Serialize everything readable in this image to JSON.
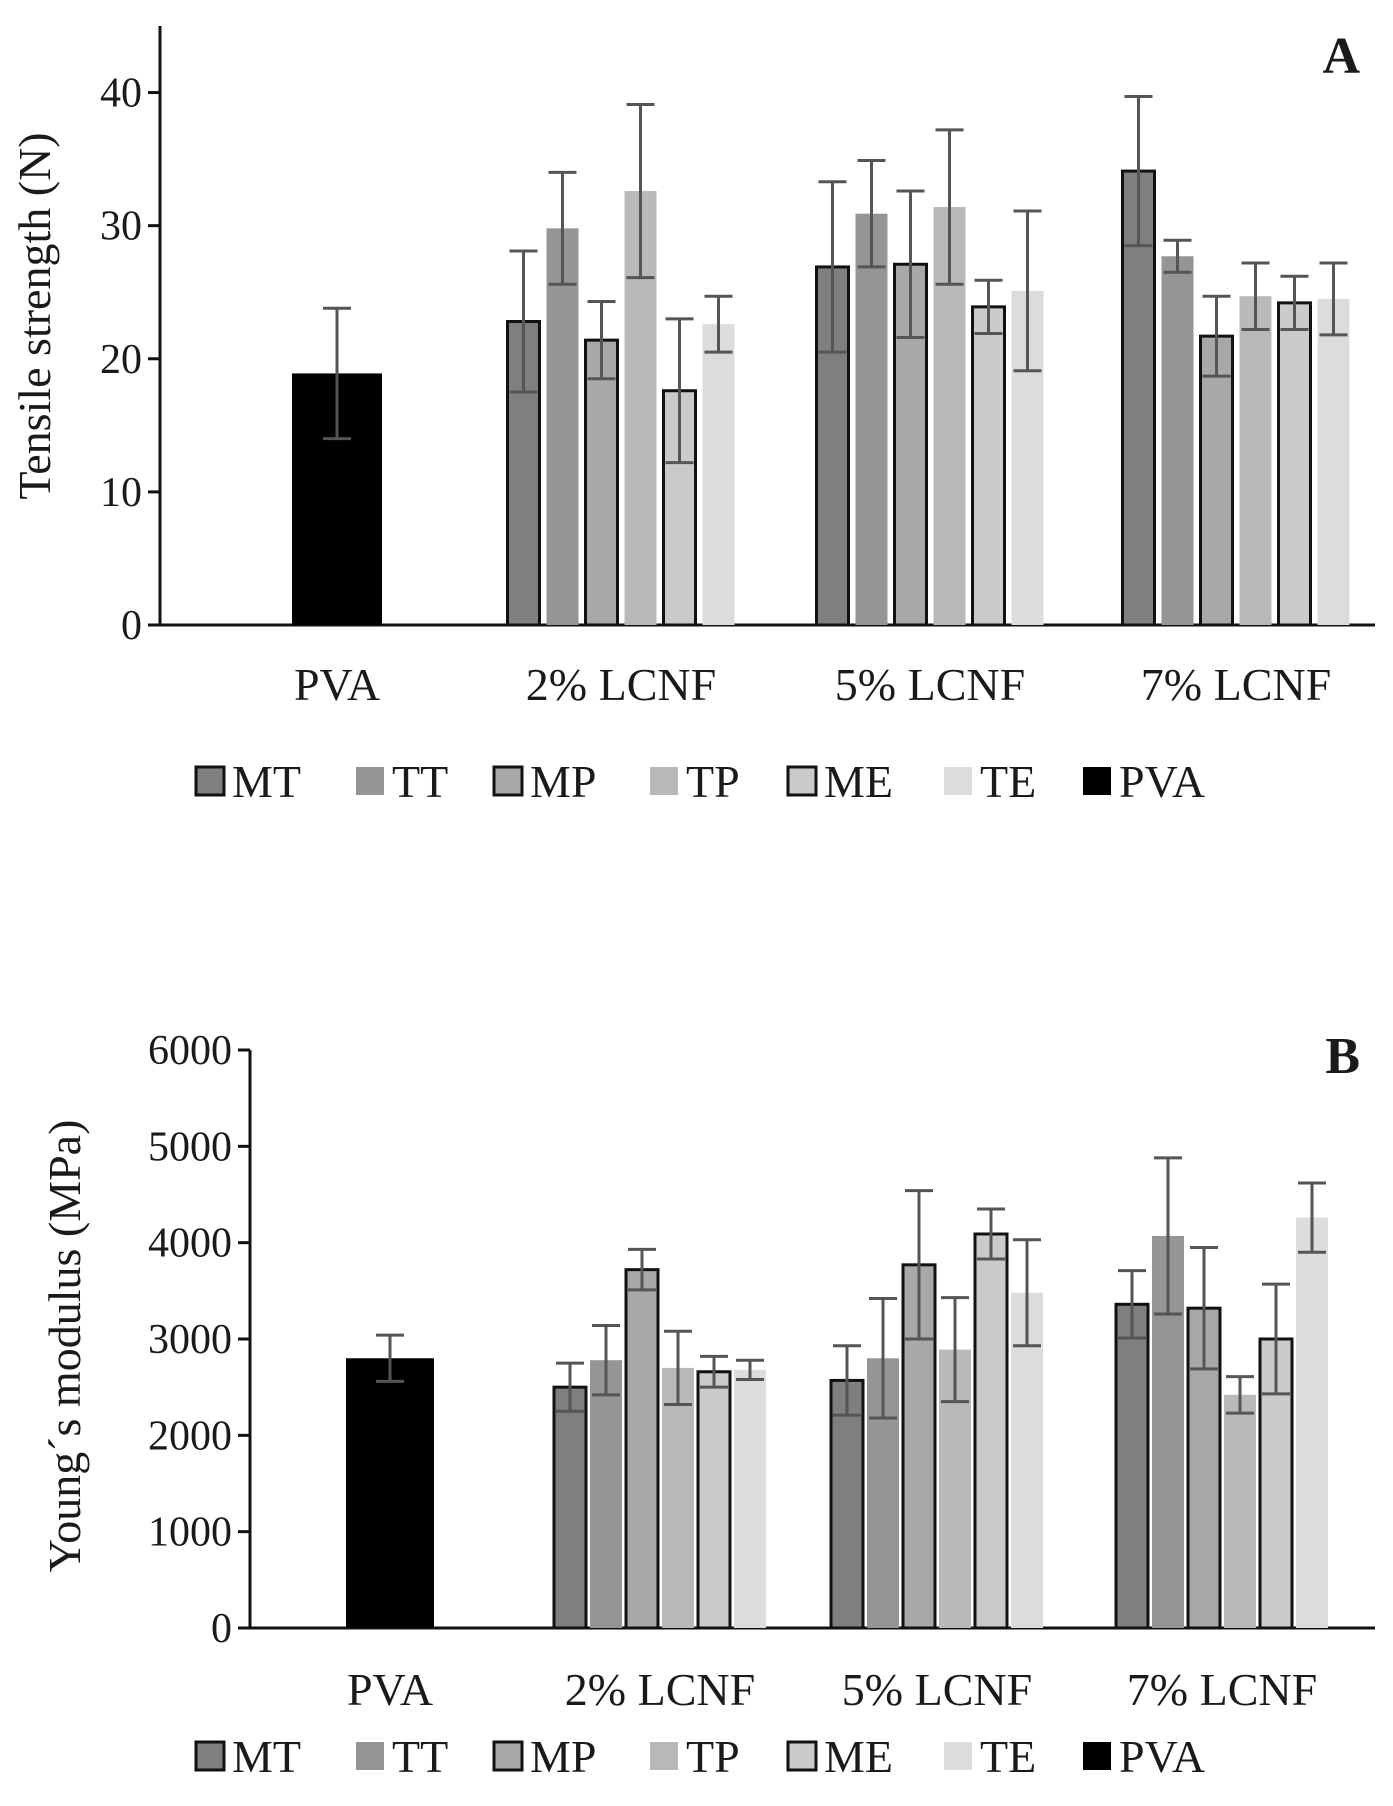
{
  "chart_data": [
    {
      "type": "bar",
      "panel_label": "A",
      "ylabel": "Tensile strength (N)",
      "xlabel": "",
      "ylim": [
        0,
        45
      ],
      "yticks": [
        0,
        10,
        20,
        30,
        40
      ],
      "grid": false,
      "legend_position": "bottom",
      "categories": [
        "PVA",
        "2% LCNF",
        "5% LCNF",
        "7% LCNF"
      ],
      "series": [
        {
          "name": "MT",
          "color": "#7f7f7f",
          "outlined": true,
          "values": [
            null,
            22.8,
            26.9,
            34.1
          ],
          "errors": [
            null,
            5.3,
            6.4,
            5.6
          ]
        },
        {
          "name": "TT",
          "color": "#959595",
          "outlined": false,
          "values": [
            null,
            29.8,
            30.9,
            27.7
          ],
          "errors": [
            null,
            4.2,
            4.0,
            1.2
          ]
        },
        {
          "name": "MP",
          "color": "#a8a8a8",
          "outlined": true,
          "values": [
            null,
            21.4,
            27.1,
            21.7
          ],
          "errors": [
            null,
            2.9,
            5.5,
            3.0
          ]
        },
        {
          "name": "TP",
          "color": "#b9b9b9",
          "outlined": false,
          "values": [
            null,
            32.6,
            31.4,
            24.7
          ],
          "errors": [
            null,
            6.5,
            5.8,
            2.5
          ]
        },
        {
          "name": "ME",
          "color": "#cacaca",
          "outlined": true,
          "values": [
            null,
            17.6,
            23.9,
            24.2
          ],
          "errors": [
            null,
            5.4,
            2.0,
            2.0
          ]
        },
        {
          "name": "TE",
          "color": "#dcdcdc",
          "outlined": false,
          "values": [
            null,
            22.6,
            25.1,
            24.5
          ],
          "errors": [
            null,
            2.1,
            6.0,
            2.7
          ]
        },
        {
          "name": "PVA",
          "color": "#000000",
          "outlined": false,
          "values": [
            18.9,
            null,
            null,
            null
          ],
          "errors": [
            4.9,
            null,
            null,
            null
          ]
        }
      ]
    },
    {
      "type": "bar",
      "panel_label": "B",
      "ylabel": "Young´s modulus (MPa)",
      "xlabel": "",
      "ylim": [
        0,
        6000
      ],
      "yticks": [
        0,
        1000,
        2000,
        3000,
        4000,
        5000,
        6000
      ],
      "grid": false,
      "legend_position": "bottom",
      "categories": [
        "PVA",
        "2% LCNF",
        "5% LCNF",
        "7% LCNF"
      ],
      "series": [
        {
          "name": "MT",
          "color": "#7f7f7f",
          "outlined": true,
          "values": [
            null,
            2500,
            2570,
            3360
          ],
          "errors": [
            null,
            250,
            360,
            350
          ]
        },
        {
          "name": "TT",
          "color": "#959595",
          "outlined": false,
          "values": [
            null,
            2780,
            2800,
            4070
          ],
          "errors": [
            null,
            360,
            620,
            810
          ]
        },
        {
          "name": "MP",
          "color": "#a8a8a8",
          "outlined": true,
          "values": [
            null,
            3720,
            3770,
            3320
          ],
          "errors": [
            null,
            210,
            770,
            630
          ]
        },
        {
          "name": "TP",
          "color": "#b9b9b9",
          "outlined": false,
          "values": [
            null,
            2700,
            2890,
            2420
          ],
          "errors": [
            null,
            380,
            540,
            190
          ]
        },
        {
          "name": "ME",
          "color": "#cacaca",
          "outlined": true,
          "values": [
            null,
            2660,
            4090,
            3000
          ],
          "errors": [
            null,
            160,
            260,
            570
          ]
        },
        {
          "name": "TE",
          "color": "#dcdcdc",
          "outlined": false,
          "values": [
            null,
            2680,
            3480,
            4260
          ],
          "errors": [
            null,
            100,
            550,
            360
          ]
        },
        {
          "name": "PVA",
          "color": "#000000",
          "outlined": false,
          "values": [
            2800,
            null,
            null,
            null
          ],
          "errors": [
            240,
            null,
            null,
            null
          ]
        }
      ]
    }
  ]
}
